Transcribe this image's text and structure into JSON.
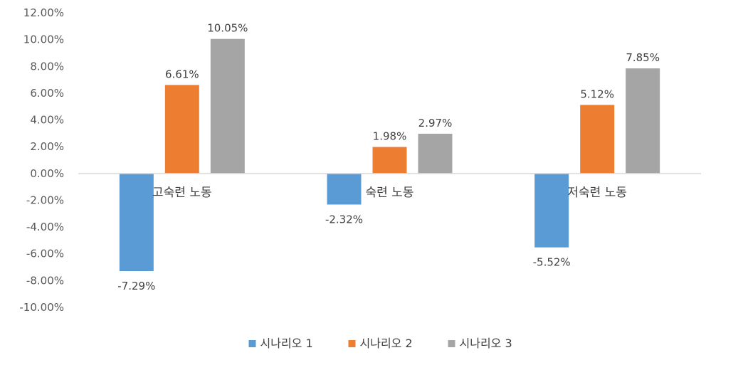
{
  "chart_data": {
    "type": "bar",
    "title": "",
    "xlabel": "",
    "ylabel": "",
    "categories": [
      "고숙련 노동",
      "숙련 노동",
      "저숙련 노동"
    ],
    "series": [
      {
        "name": "시나리오 1",
        "color": "#5B9BD5",
        "values": [
          -7.29,
          -2.32,
          -5.52
        ],
        "labels": [
          "-7.29%",
          "-2.32%",
          "-5.52%"
        ]
      },
      {
        "name": "시나리오 2",
        "color": "#ED7D31",
        "values": [
          6.61,
          1.98,
          5.12
        ],
        "labels": [
          "6.61%",
          "1.98%",
          "5.12%"
        ]
      },
      {
        "name": "시나리오 3",
        "color": "#A5A5A5",
        "values": [
          10.05,
          2.97,
          7.85
        ],
        "labels": [
          "10.05%",
          "2.97%",
          "7.85%"
        ]
      }
    ],
    "ylim": [
      -10,
      12
    ],
    "yticks": [
      12,
      10,
      8,
      6,
      4,
      2,
      0,
      -2,
      -4,
      -6,
      -8,
      -10
    ],
    "ytick_labels": [
      "12.00%",
      "10.00%",
      "8.00%",
      "6.00%",
      "4.00%",
      "2.00%",
      "0.00%",
      "-2.00%",
      "-4.00%",
      "-6.00%",
      "-8.00%",
      "-10.00%"
    ],
    "grid": false,
    "legend_position": "bottom"
  }
}
